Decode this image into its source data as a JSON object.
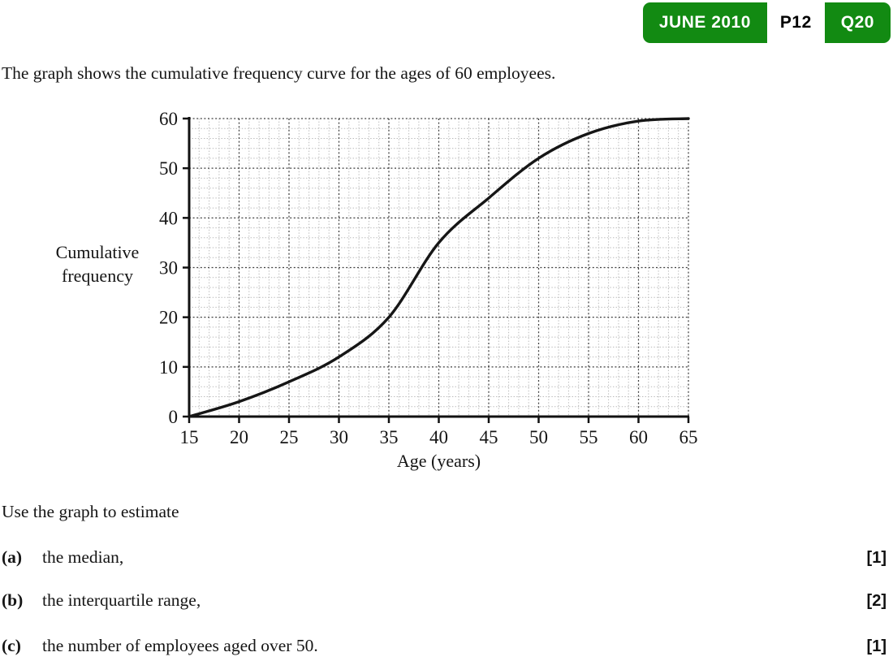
{
  "badge": {
    "session": "JUNE 2010",
    "paper": "P12",
    "question": "Q20",
    "color": "#128a12"
  },
  "intro": "The graph shows the cumulative frequency curve for the ages of 60 employees.",
  "chart_data": {
    "type": "line",
    "title": "",
    "xlabel": "Age (years)",
    "ylabel": "Cumulative frequency",
    "ylabel_lines": [
      "Cumulative",
      "frequency"
    ],
    "xlim": [
      15,
      65
    ],
    "ylim": [
      0,
      60
    ],
    "x_ticks": [
      15,
      20,
      25,
      30,
      35,
      40,
      45,
      50,
      55,
      60,
      65
    ],
    "y_ticks": [
      0,
      10,
      20,
      30,
      40,
      50,
      60
    ],
    "x_minor_step": 1,
    "y_minor_step": 2,
    "grid": true,
    "series": [
      {
        "name": "cumulative-frequency-curve",
        "points": [
          [
            15,
            0
          ],
          [
            20,
            3
          ],
          [
            25,
            7
          ],
          [
            30,
            12
          ],
          [
            35,
            20
          ],
          [
            40,
            35
          ],
          [
            45,
            44
          ],
          [
            50,
            52
          ],
          [
            55,
            57
          ],
          [
            60,
            59.5
          ],
          [
            65,
            60
          ]
        ]
      }
    ]
  },
  "questions": {
    "lead": "Use the graph to estimate",
    "parts": [
      {
        "label": "(a)",
        "text": "the median,",
        "marks": "[1]"
      },
      {
        "label": "(b)",
        "text": "the interquartile range,",
        "marks": "[2]"
      },
      {
        "label": "(c)",
        "text": "the number of employees aged over 50.",
        "marks": "[1]"
      }
    ]
  },
  "colors": {
    "badge_green": "#128a12",
    "text": "#151515",
    "curve": "#161616",
    "grid_minor": "#b9b9b9",
    "grid_major": "#3f3f3f"
  }
}
